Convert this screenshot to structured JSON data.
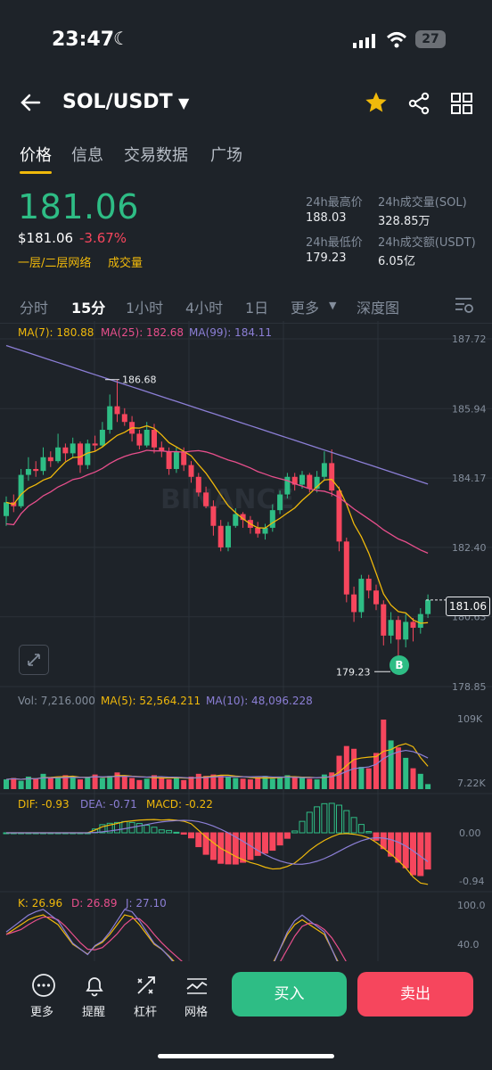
{
  "status_bar": {
    "time": "23:47",
    "battery": "27"
  },
  "header": {
    "pair": "SOL/USDT"
  },
  "tabs": [
    "价格",
    "信息",
    "交易数据",
    "广场"
  ],
  "price": {
    "last": "181.06",
    "usd": "$181.06",
    "change": "-3.67%",
    "tag_network": "一层/二层网络",
    "tag_volume": "成交量"
  },
  "stats": {
    "high_label": "24h最高价",
    "high_value": "188.03",
    "low_label": "24h最低价",
    "low_value": "179.23",
    "vol_sol_label": "24h成交量(SOL)",
    "vol_sol_value": "328.85万",
    "vol_usdt_label": "24h成交额(USDT)",
    "vol_usdt_value": "6.05亿"
  },
  "intervals": [
    "分时",
    "15分",
    "1小时",
    "4小时",
    "1日",
    "更多",
    "深度图"
  ],
  "main_chart": {
    "ma7_label": "MA(7): 180.88",
    "ma25_label": "MA(25): 182.68",
    "ma99_label": "MA(99): 184.11",
    "y_ticks": [
      "187.72",
      "185.94",
      "184.17",
      "182.40",
      "180.63",
      "178.85"
    ],
    "high_marker": "186.68",
    "low_marker": "179.23",
    "current_price_tag": "181.06",
    "buy_marker": "B",
    "watermark": "BINANCE"
  },
  "volume_chart": {
    "vol_label": "Vol: 7,216.000",
    "ma5_label": "MA(5): 52,564.211",
    "ma10_label": "MA(10): 48,096.228",
    "y_ticks": [
      "109K",
      "7.22K"
    ]
  },
  "macd_chart": {
    "dif_label": "DIF: -0.93",
    "dea_label": "DEA: -0.71",
    "macd_label": "MACD: -0.22",
    "y_ticks": [
      "0.00",
      "-0.94"
    ]
  },
  "kdj_chart": {
    "k_label": "K: 26.96",
    "d_label": "D: 26.89",
    "j_label": "J: 27.10",
    "y_ticks": [
      "100.0",
      "40.0"
    ]
  },
  "bottom_bar": {
    "more": "更多",
    "alert": "提醒",
    "leverage": "杠杆",
    "grid": "网格",
    "buy": "买入",
    "sell": "卖出"
  },
  "colors": {
    "up": "#2ebd85",
    "down": "#f6465d",
    "accent": "#f0b90b",
    "ma7": "#f0b90b",
    "ma25": "#e84f8c",
    "ma99": "#8c7fd6"
  }
}
